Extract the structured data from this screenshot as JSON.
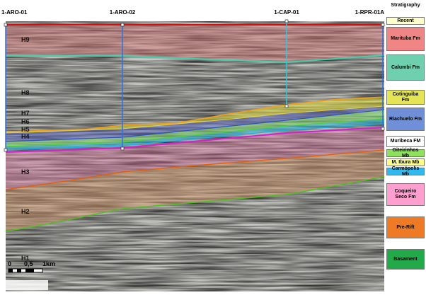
{
  "wells": [
    "1-ARO-01",
    "1-ARO-02",
    "1-CAP-01",
    "1-RPR-01A"
  ],
  "horizons": [
    "H9",
    "H8",
    "H7",
    "H6",
    "H5",
    "H4",
    "H3",
    "H2",
    "H1"
  ],
  "scale": [
    "0",
    "0,5",
    "1km"
  ],
  "legend": {
    "title": "Stratigraphy",
    "units": [
      {
        "name": "Recent",
        "color": "#ffffcc"
      },
      {
        "name": "Marituba Fm",
        "color": "#f08585"
      },
      {
        "name": "Calumbi Fm",
        "color": "#6fd0b0"
      },
      {
        "name": "Cotinguiba Fm",
        "color": "#e4e455"
      },
      {
        "name": "Riachuelo Fm",
        "color": "#6f8fd8"
      },
      {
        "name": "Muribeca FM",
        "color": "#ffffff"
      },
      {
        "name": "Oiteirinhos Mb",
        "color": "#8fe060"
      },
      {
        "name": "M. Ibura Mb",
        "color": "#ffff88"
      },
      {
        "name": "Carmópolis Mb",
        "color": "#33b8ee"
      },
      {
        "name": "Coqueiro Seco Fm",
        "color": "#ff9fcf"
      },
      {
        "name": "Pre-Rift",
        "color": "#ee7a25"
      },
      {
        "name": "Basament",
        "color": "#22aa4a"
      }
    ]
  }
}
